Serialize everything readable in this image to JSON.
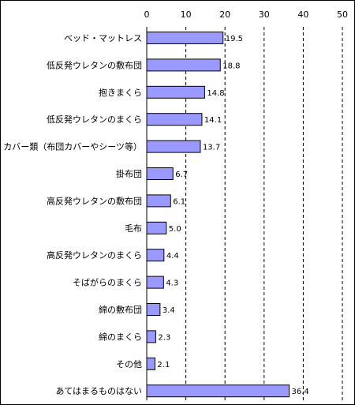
{
  "chart_data": {
    "type": "bar",
    "orientation": "horizontal",
    "categories": [
      "ベッド・マットレス",
      "低反発ウレタンの敷布団",
      "抱きまくら",
      "低反発ウレタンのまくら",
      "カバー類（布団カバーやシーツ等）",
      "掛布団",
      "高反発ウレタンの敷布団",
      "毛布",
      "高反発ウレタンのまくら",
      "そばがらのまくら",
      "綿の敷布団",
      "綿のまくら",
      "その他",
      "あてはまるものはない"
    ],
    "values": [
      19.5,
      18.8,
      14.8,
      14.1,
      13.7,
      6.7,
      6.1,
      5.0,
      4.4,
      4.3,
      3.4,
      2.3,
      2.1,
      36.4
    ],
    "value_labels": [
      "19.5",
      "18.8",
      "14.8",
      "14.1",
      "13.7",
      "6.7",
      "6.1",
      "5.0",
      "4.4",
      "4.3",
      "3.4",
      "2.3",
      "2.1",
      "36.4"
    ],
    "xlim": [
      0,
      50
    ],
    "ticks": [
      0,
      10,
      20,
      30,
      40,
      50
    ],
    "tick_labels": [
      "0",
      "10",
      "20",
      "30",
      "40",
      "50"
    ],
    "grid": "vertical dashed",
    "legend": "none",
    "title": "",
    "xlabel": "",
    "ylabel": "",
    "colors": {
      "bar_fill": "#9999ff",
      "bar_stroke": "#000000",
      "grid": "#000000",
      "frame": "#000000"
    }
  }
}
